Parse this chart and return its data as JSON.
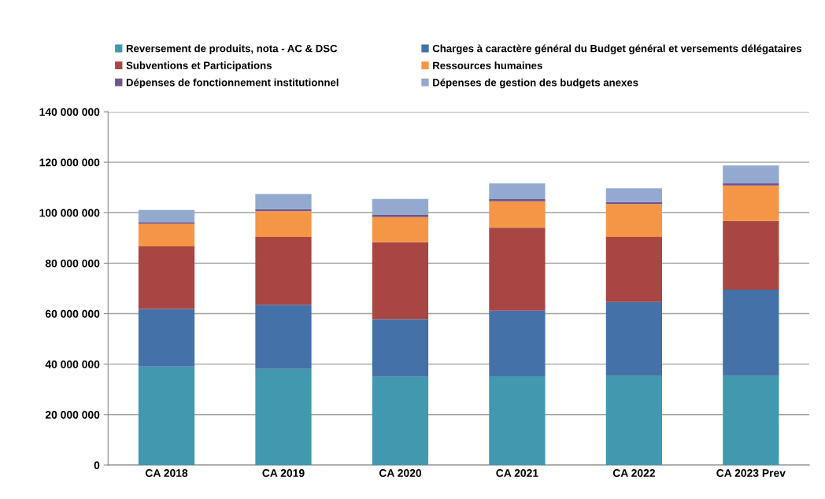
{
  "chart_data": {
    "type": "bar",
    "stacked": true,
    "categories": [
      "CA 2018",
      "CA 2019",
      "CA 2020",
      "CA 2021",
      "CA 2022",
      "CA 2023 Prev"
    ],
    "series": [
      {
        "name": "Reversement de produits, nota - AC & DSC",
        "color": "#4198af",
        "values": [
          39000000,
          38100000,
          35000000,
          35200000,
          35300000,
          35300000
        ]
      },
      {
        "name": "Charges à caractère général du Budget général et versements délégataires",
        "color": "#4471a7",
        "values": [
          22900000,
          25400000,
          22800000,
          26000000,
          29300000,
          34200000
        ]
      },
      {
        "name": "Subventions et Participations",
        "color": "#a84643",
        "values": [
          24800000,
          26900000,
          30500000,
          32900000,
          25800000,
          27200000
        ]
      },
      {
        "name": "Ressources humaines",
        "color": "#f59646",
        "values": [
          8900000,
          10200000,
          10000000,
          10400000,
          13000000,
          14100000
        ]
      },
      {
        "name": "Dépenses de fonctionnement institutionnel",
        "color": "#6f558f",
        "values": [
          700000,
          800000,
          1000000,
          900000,
          800000,
          800000
        ]
      },
      {
        "name": "Dépenses de gestion des budgets anexes",
        "color": "#93a9d0",
        "values": [
          4800000,
          6000000,
          6200000,
          6200000,
          5500000,
          7100000
        ]
      }
    ],
    "ylim": [
      0,
      140000000
    ],
    "yticks": [
      {
        "value": 0,
        "label": "0"
      },
      {
        "value": 20000000,
        "label": "20 000 000"
      },
      {
        "value": 40000000,
        "label": "40 000 000"
      },
      {
        "value": 60000000,
        "label": "60 000 000"
      },
      {
        "value": 80000000,
        "label": "80 000 000"
      },
      {
        "value": 100000000,
        "label": "100 000 000"
      },
      {
        "value": 120000000,
        "label": "120 000 000"
      },
      {
        "value": 140000000,
        "label": "140 000 000"
      }
    ],
    "grid": "y",
    "legend": "top"
  }
}
